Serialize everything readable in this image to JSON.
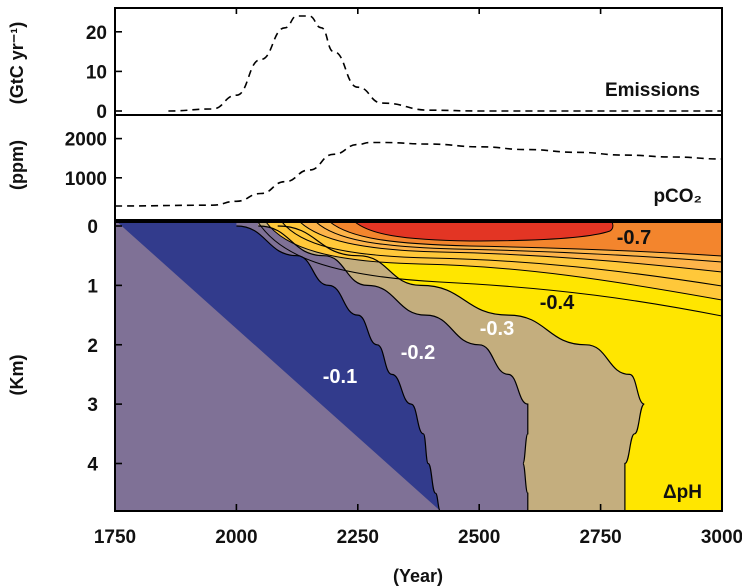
{
  "chart_data": [
    {
      "type": "line",
      "panel": "emissions",
      "label": "Emissions",
      "ylabel": "(GtC yr⁻¹)",
      "ylim": [
        0,
        25
      ],
      "yticks": [
        "0",
        "10",
        "20"
      ],
      "xlim": [
        1750,
        3000
      ],
      "series": [
        {
          "x": [
            1860,
            1950,
            2000,
            2050,
            2100,
            2125,
            2150,
            2175,
            2200,
            2250,
            2300,
            2400,
            2500,
            2600,
            3000
          ],
          "y": [
            0,
            0.5,
            4,
            13,
            21,
            24,
            24,
            21,
            15,
            6,
            2,
            0.2,
            0,
            0,
            0
          ]
        }
      ]
    },
    {
      "type": "line",
      "panel": "pco2",
      "label": "pCO₂",
      "ylabel": "(ppm)",
      "ylim": [
        0,
        2500
      ],
      "yticks": [
        "1000",
        "2000"
      ],
      "xlim": [
        1750,
        3000
      ],
      "series": [
        {
          "x": [
            1750,
            1950,
            2000,
            2050,
            2100,
            2150,
            2200,
            2250,
            2275,
            2300,
            2400,
            2500,
            2600,
            2700,
            2800,
            2900,
            3000
          ],
          "y": [
            280,
            300,
            400,
            600,
            900,
            1200,
            1600,
            1850,
            1900,
            1900,
            1860,
            1790,
            1720,
            1650,
            1580,
            1530,
            1480
          ]
        }
      ]
    },
    {
      "type": "heatmap",
      "panel": "delta-ph",
      "label": "ΔpH",
      "xlabel": "(Year)",
      "ylabel": "(Km)",
      "xlim": [
        1750,
        3000
      ],
      "ylim": [
        4.8,
        0
      ],
      "xticks": [
        "1750",
        "2000",
        "2250",
        "2500",
        "2750",
        "3000"
      ],
      "yticks": [
        "0",
        "1",
        "2",
        "3",
        "4"
      ],
      "levels": [
        {
          "value": -0.1,
          "label": "-0.1",
          "x": [
            2000,
            2125,
            2190,
            2250,
            2290,
            2320,
            2360,
            2385,
            2395,
            2410,
            2420,
            2420
          ]
        },
        {
          "value": -0.2,
          "label": "-0.2",
          "x": [
            2045,
            2180,
            2270,
            2390,
            2500,
            2560,
            2600,
            2600,
            2590,
            2600
          ]
        },
        {
          "value": -0.3,
          "label": "-0.3",
          "x": [
            2085,
            2250,
            2380,
            2560,
            2720,
            2810,
            2840,
            2820,
            2800,
            2800
          ]
        },
        {
          "value": -0.4,
          "label": "-0.4"
        },
        {
          "value": -0.7,
          "label": "-0.7"
        }
      ]
    }
  ]
}
